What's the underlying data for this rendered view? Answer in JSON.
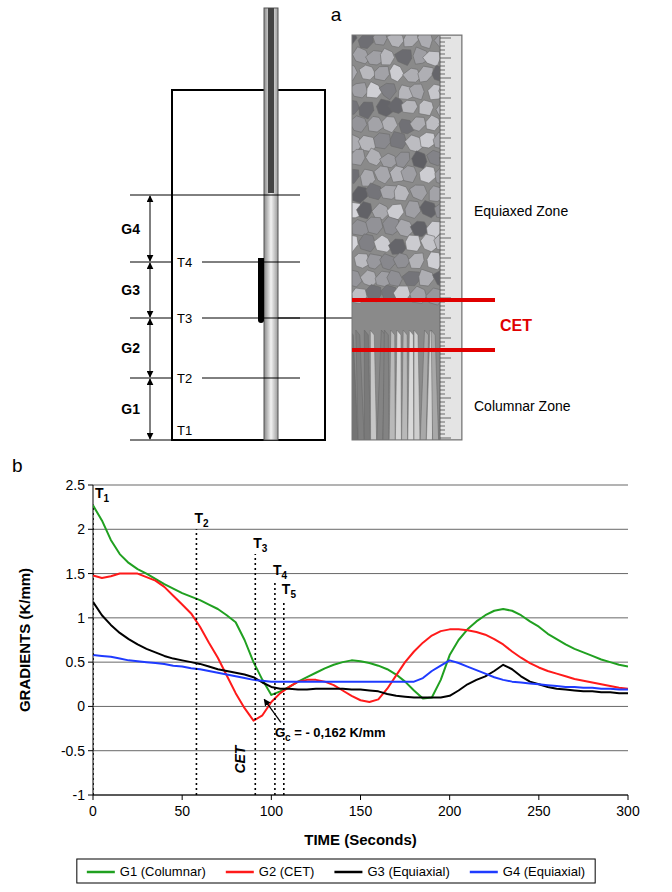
{
  "figure": {
    "panel_labels": [
      "a",
      "b"
    ]
  },
  "diagram": {
    "gradients": [
      "G4",
      "G3",
      "G2",
      "G1"
    ],
    "thermocouples": [
      "T4",
      "T3",
      "T2",
      "T1"
    ],
    "equiaxed_zone": "Equiaxed Zone",
    "columnar_zone": "Columnar Zone",
    "transition": "CET"
  },
  "chart_data": {
    "type": "line",
    "x_label": "TIME (Seconds)",
    "y_label": "GRADIENTS (K/mm)",
    "xlim": [
      0,
      300
    ],
    "xticks": [
      0,
      50,
      100,
      150,
      200,
      250,
      300
    ],
    "ylim": [
      -1,
      2.5
    ],
    "yticks": [
      -1,
      -0.5,
      0,
      0.5,
      1,
      1.5,
      2,
      2.5
    ],
    "grid": true,
    "legend": "bottom",
    "x": [
      0,
      5,
      10,
      15,
      20,
      25,
      30,
      35,
      40,
      45,
      50,
      55,
      60,
      65,
      70,
      75,
      80,
      85,
      90,
      95,
      100,
      105,
      110,
      115,
      120,
      125,
      130,
      135,
      140,
      145,
      150,
      155,
      160,
      165,
      170,
      175,
      180,
      185,
      190,
      195,
      200,
      205,
      210,
      215,
      220,
      225,
      230,
      235,
      240,
      245,
      250,
      255,
      260,
      265,
      270,
      275,
      280,
      285,
      290,
      295,
      300
    ],
    "series": [
      {
        "name": "G1 (Columnar)",
        "color": "#20a020",
        "values": [
          2.27,
          2.1,
          1.88,
          1.72,
          1.62,
          1.55,
          1.5,
          1.44,
          1.38,
          1.33,
          1.28,
          1.24,
          1.2,
          1.15,
          1.1,
          1.03,
          0.95,
          0.75,
          0.5,
          0.3,
          0.13,
          0.17,
          0.22,
          0.28,
          0.33,
          0.38,
          0.43,
          0.47,
          0.5,
          0.52,
          0.51,
          0.49,
          0.46,
          0.42,
          0.36,
          0.28,
          0.18,
          0.09,
          0.1,
          0.3,
          0.58,
          0.75,
          0.87,
          0.96,
          1.03,
          1.08,
          1.1,
          1.08,
          1.03,
          0.96,
          0.9,
          0.82,
          0.76,
          0.7,
          0.65,
          0.61,
          0.57,
          0.53,
          0.5,
          0.47,
          0.45
        ]
      },
      {
        "name": "G2 (CET)",
        "color": "#ff1a1a",
        "values": [
          1.48,
          1.45,
          1.47,
          1.5,
          1.5,
          1.5,
          1.46,
          1.42,
          1.35,
          1.25,
          1.15,
          1.05,
          0.9,
          0.72,
          0.55,
          0.35,
          0.15,
          -0.02,
          -0.16,
          -0.1,
          0.05,
          0.15,
          0.22,
          0.28,
          0.3,
          0.3,
          0.28,
          0.24,
          0.18,
          0.12,
          0.07,
          0.05,
          0.08,
          0.2,
          0.35,
          0.5,
          0.62,
          0.72,
          0.8,
          0.85,
          0.87,
          0.87,
          0.86,
          0.84,
          0.81,
          0.76,
          0.7,
          0.62,
          0.55,
          0.49,
          0.44,
          0.4,
          0.37,
          0.34,
          0.31,
          0.29,
          0.27,
          0.25,
          0.23,
          0.21,
          0.2
        ]
      },
      {
        "name": "G3 (Equiaxial)",
        "color": "#000000",
        "values": [
          1.18,
          1.03,
          0.92,
          0.83,
          0.76,
          0.7,
          0.65,
          0.61,
          0.57,
          0.54,
          0.52,
          0.5,
          0.48,
          0.45,
          0.42,
          0.4,
          0.38,
          0.36,
          0.33,
          0.27,
          0.22,
          0.2,
          0.2,
          0.19,
          0.19,
          0.2,
          0.2,
          0.2,
          0.2,
          0.19,
          0.19,
          0.18,
          0.17,
          0.14,
          0.12,
          0.11,
          0.1,
          0.1,
          0.1,
          0.1,
          0.12,
          0.18,
          0.25,
          0.3,
          0.34,
          0.4,
          0.47,
          0.42,
          0.34,
          0.28,
          0.25,
          0.22,
          0.2,
          0.19,
          0.18,
          0.17,
          0.17,
          0.16,
          0.16,
          0.15,
          0.15
        ]
      },
      {
        "name": "G4 (Equiaxial)",
        "color": "#1f3bff",
        "values": [
          0.58,
          0.57,
          0.56,
          0.54,
          0.52,
          0.51,
          0.5,
          0.49,
          0.48,
          0.46,
          0.45,
          0.43,
          0.42,
          0.4,
          0.38,
          0.36,
          0.34,
          0.32,
          0.3,
          0.29,
          0.28,
          0.28,
          0.28,
          0.28,
          0.28,
          0.28,
          0.28,
          0.28,
          0.28,
          0.28,
          0.28,
          0.28,
          0.28,
          0.28,
          0.28,
          0.28,
          0.28,
          0.32,
          0.4,
          0.46,
          0.52,
          0.49,
          0.45,
          0.41,
          0.37,
          0.33,
          0.3,
          0.28,
          0.27,
          0.26,
          0.25,
          0.24,
          0.23,
          0.22,
          0.22,
          0.21,
          0.21,
          0.2,
          0.2,
          0.19,
          0.19
        ]
      }
    ],
    "events": [
      {
        "label": "T1",
        "x": 0,
        "y": 2.28
      },
      {
        "label": "T2",
        "x": 58,
        "y": 2.0
      },
      {
        "label": "T3",
        "x": 91,
        "y": 1.72
      },
      {
        "label": "T4",
        "x": 102,
        "y": 1.42
      },
      {
        "label": "T5",
        "x": 107,
        "y": 1.2
      }
    ],
    "annotations": [
      {
        "text": "CET",
        "x": 85,
        "y": -0.6
      },
      {
        "text": "Gc = - 0,162 K/mm",
        "x": 102,
        "y": -0.35,
        "arrow_to": [
          96,
          0.08
        ]
      }
    ]
  }
}
